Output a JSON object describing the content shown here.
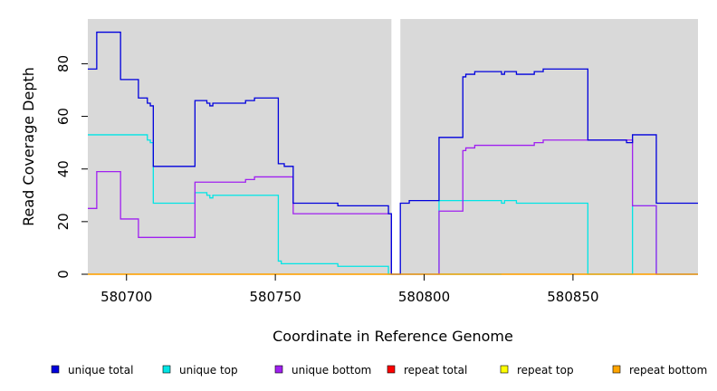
{
  "chart_data": {
    "type": "line",
    "xlabel": "Coordinate in Reference Genome",
    "ylabel": "Read Coverage Depth",
    "xlim": [
      580687,
      580892
    ],
    "ylim": [
      0,
      97
    ],
    "x_ticks": [
      580700,
      580750,
      580800,
      580850
    ],
    "y_ticks": [
      0,
      20,
      40,
      60,
      80
    ],
    "x_tick_labels": [
      "580700",
      "580750",
      "580800",
      "580850"
    ],
    "y_tick_labels": [
      "0",
      "20",
      "40",
      "60",
      "80"
    ],
    "background": "#d9d9d9",
    "gap": [
      580789,
      580792
    ],
    "legend_position": "bottom",
    "series": [
      {
        "name": "unique total",
        "color": "#0000dd",
        "points": [
          [
            580687,
            78
          ],
          [
            580690,
            78
          ],
          [
            580690,
            92
          ],
          [
            580698,
            92
          ],
          [
            580698,
            74
          ],
          [
            580704,
            74
          ],
          [
            580704,
            67
          ],
          [
            580707,
            67
          ],
          [
            580707,
            65
          ],
          [
            580708,
            65
          ],
          [
            580708,
            64
          ],
          [
            580709,
            64
          ],
          [
            580709,
            41
          ],
          [
            580723,
            41
          ],
          [
            580723,
            66
          ],
          [
            580727,
            66
          ],
          [
            580727,
            65
          ],
          [
            580728,
            65
          ],
          [
            580728,
            64
          ],
          [
            580729,
            64
          ],
          [
            580729,
            65
          ],
          [
            580740,
            65
          ],
          [
            580740,
            66
          ],
          [
            580743,
            66
          ],
          [
            580743,
            67
          ],
          [
            580751,
            67
          ],
          [
            580751,
            42
          ],
          [
            580753,
            42
          ],
          [
            580753,
            41
          ],
          [
            580756,
            41
          ],
          [
            580756,
            27
          ],
          [
            580771,
            27
          ],
          [
            580771,
            26
          ],
          [
            580788,
            26
          ],
          [
            580788,
            23
          ],
          [
            580789,
            23
          ],
          [
            580789,
            0
          ],
          [
            580792,
            0
          ],
          [
            580792,
            27
          ],
          [
            580795,
            27
          ],
          [
            580795,
            28
          ],
          [
            580805,
            28
          ],
          [
            580805,
            52
          ],
          [
            580813,
            52
          ],
          [
            580813,
            75
          ],
          [
            580814,
            75
          ],
          [
            580814,
            76
          ],
          [
            580817,
            76
          ],
          [
            580817,
            77
          ],
          [
            580826,
            77
          ],
          [
            580826,
            76
          ],
          [
            580827,
            76
          ],
          [
            580827,
            77
          ],
          [
            580831,
            77
          ],
          [
            580831,
            76
          ],
          [
            580837,
            76
          ],
          [
            580837,
            77
          ],
          [
            580840,
            77
          ],
          [
            580840,
            78
          ],
          [
            580855,
            78
          ],
          [
            580855,
            51
          ],
          [
            580868,
            51
          ],
          [
            580868,
            50
          ],
          [
            580870,
            50
          ],
          [
            580870,
            53
          ],
          [
            580878,
            53
          ],
          [
            580878,
            27
          ],
          [
            580892,
            27
          ]
        ]
      },
      {
        "name": "unique top",
        "color": "#00e5e5",
        "points": [
          [
            580687,
            53
          ],
          [
            580707,
            53
          ],
          [
            580707,
            51
          ],
          [
            580708,
            51
          ],
          [
            580708,
            50
          ],
          [
            580709,
            50
          ],
          [
            580709,
            27
          ],
          [
            580723,
            27
          ],
          [
            580723,
            31
          ],
          [
            580727,
            31
          ],
          [
            580727,
            30
          ],
          [
            580728,
            30
          ],
          [
            580728,
            29
          ],
          [
            580729,
            29
          ],
          [
            580729,
            30
          ],
          [
            580751,
            30
          ],
          [
            580751,
            5
          ],
          [
            580752,
            5
          ],
          [
            580752,
            4
          ],
          [
            580771,
            4
          ],
          [
            580771,
            3
          ],
          [
            580788,
            3
          ],
          [
            580788,
            0
          ],
          [
            580826,
            0
          ],
          [
            580826,
            0
          ],
          [
            580792,
            0
          ],
          [
            580792,
            0
          ],
          [
            580795,
            0
          ],
          [
            580795,
            0
          ],
          [
            580805,
            0
          ],
          [
            580805,
            28
          ],
          [
            580826,
            28
          ],
          [
            580826,
            27
          ],
          [
            580827,
            27
          ],
          [
            580827,
            28
          ],
          [
            580831,
            28
          ],
          [
            580831,
            27
          ],
          [
            580855,
            27
          ],
          [
            580855,
            0
          ],
          [
            580870,
            0
          ],
          [
            580870,
            26
          ],
          [
            580878,
            26
          ],
          [
            580878,
            0
          ],
          [
            580892,
            0
          ]
        ]
      },
      {
        "name": "unique bottom",
        "color": "#a020f0",
        "points": [
          [
            580687,
            25
          ],
          [
            580690,
            25
          ],
          [
            580690,
            39
          ],
          [
            580698,
            39
          ],
          [
            580698,
            21
          ],
          [
            580704,
            21
          ],
          [
            580704,
            14
          ],
          [
            580723,
            14
          ],
          [
            580723,
            35
          ],
          [
            580740,
            35
          ],
          [
            580740,
            36
          ],
          [
            580743,
            36
          ],
          [
            580743,
            37
          ],
          [
            580756,
            37
          ],
          [
            580756,
            23
          ],
          [
            580789,
            23
          ],
          [
            580789,
            0
          ],
          [
            580805,
            0
          ],
          [
            580805,
            24
          ],
          [
            580813,
            24
          ],
          [
            580813,
            47
          ],
          [
            580814,
            47
          ],
          [
            580814,
            48
          ],
          [
            580817,
            48
          ],
          [
            580817,
            49
          ],
          [
            580837,
            49
          ],
          [
            580837,
            50
          ],
          [
            580840,
            50
          ],
          [
            580840,
            51
          ],
          [
            580870,
            51
          ],
          [
            580870,
            26
          ],
          [
            580878,
            26
          ],
          [
            580878,
            0
          ],
          [
            580892,
            0
          ]
        ]
      },
      {
        "name": "repeat total",
        "color": "#ff0000",
        "points": [
          [
            580687,
            0
          ],
          [
            580892,
            0
          ]
        ]
      },
      {
        "name": "repeat top",
        "color": "#ffff00",
        "points": [
          [
            580687,
            0
          ],
          [
            580892,
            0
          ]
        ]
      },
      {
        "name": "repeat bottom",
        "color": "#ffa500",
        "points": [
          [
            580687,
            0
          ],
          [
            580892,
            0
          ]
        ]
      }
    ]
  }
}
